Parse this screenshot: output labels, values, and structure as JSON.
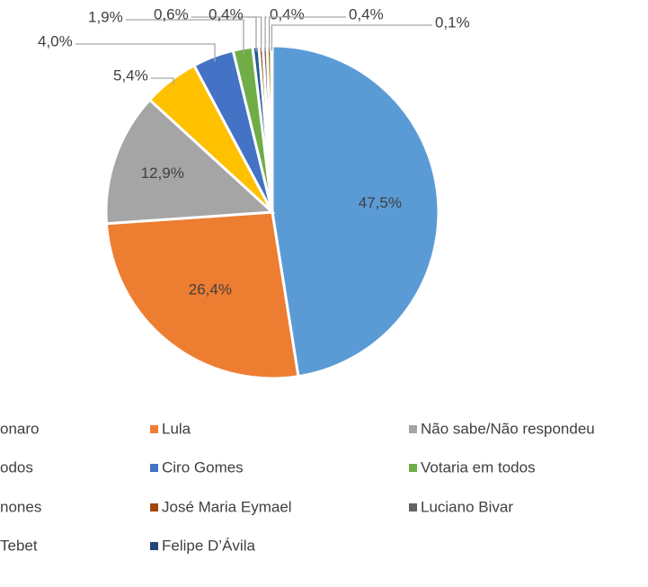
{
  "chart_data": {
    "type": "pie",
    "categories": [
      "onaro",
      "Lula",
      "Não sabe/Não respondeu",
      "odos",
      "Ciro Gomes",
      "Votaria em todos",
      "nones",
      "José Maria Eymael",
      "Luciano Bivar",
      "Tebet",
      "Felipe D’Ávila"
    ],
    "values": [
      47.5,
      26.4,
      12.9,
      5.4,
      4.0,
      1.9,
      0.6,
      0.4,
      0.4,
      0.4,
      0.1
    ],
    "value_labels": [
      "47,5%",
      "26,4%",
      "12,9%",
      "5,4%",
      "4,0%",
      "1,9%",
      "0,6%",
      "0,4%",
      "0,4%",
      "0,4%",
      "0,1%"
    ],
    "colors": [
      "#5B9BD5",
      "#ED7D31",
      "#A5A5A5",
      "#FFC000",
      "#4472C4",
      "#70AD47",
      "#255E91",
      "#9E480E",
      "#636363",
      "#997300",
      "#264478"
    ]
  }
}
